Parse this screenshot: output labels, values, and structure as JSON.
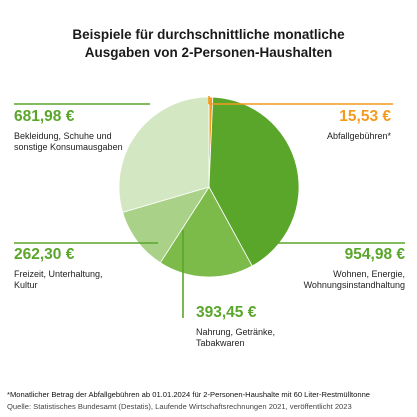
{
  "title": {
    "line1": "Beispiele für durchschnittliche monatliche",
    "line2": "Ausgaben von 2-Personen-Haushalten"
  },
  "colors": {
    "wohnen": "#5aa62a",
    "nahrung": "#7cba4a",
    "freizeit": "#a9d188",
    "bekleidung": "#d3e7c3",
    "abfall": "#f39a1e",
    "value_green": "#5aa62a",
    "value_orange": "#f39a1e"
  },
  "labels": {
    "bekleidung": {
      "value": "681,98 €",
      "desc1": "Bekleidung, Schuhe und",
      "desc2": "sonstige Konsumausgaben"
    },
    "abfall": {
      "value": "15,53 €",
      "desc1": "Abfallgebühren*"
    },
    "freizeit": {
      "value": "262,30 €",
      "desc1": "Freizeit, Unterhaltung,",
      "desc2": "Kultur"
    },
    "wohnen": {
      "value": "954,98 €",
      "desc1": "Wohnen, Energie,",
      "desc2": "Wohnungsinstandhaltung"
    },
    "nahrung": {
      "value": "393,45 €",
      "desc1": "Nahrung, Getränke,",
      "desc2": "Tabakwaren"
    }
  },
  "footnote": "*Monatlicher Betrag der Abfallgebühren ab 01.01.2024 für 2-Personen-Haushalte mit 60 Liter-Restmülltonne",
  "source": "Quelle: Statistisches Bundesamt (Destatis), Laufende Wirtschaftsrechnungen  2021, veröffentlicht 2023",
  "chart_data": {
    "type": "pie",
    "title": "Beispiele für durchschnittliche monatliche Ausgaben von 2-Personen-Haushalten",
    "unit": "€",
    "slices": [
      {
        "name": "Abfallgebühren*",
        "value": 15.53,
        "color": "#f39a1e"
      },
      {
        "name": "Wohnen, Energie, Wohnungsinstandhaltung",
        "value": 954.98,
        "color": "#5aa62a"
      },
      {
        "name": "Nahrung, Getränke, Tabakwaren",
        "value": 393.45,
        "color": "#7cba4a"
      },
      {
        "name": "Freizeit, Unterhaltung, Kultur",
        "value": 262.3,
        "color": "#a9d188"
      },
      {
        "name": "Bekleidung, Schuhe und sonstige Konsumausgaben",
        "value": 681.98,
        "color": "#d3e7c3"
      }
    ]
  }
}
